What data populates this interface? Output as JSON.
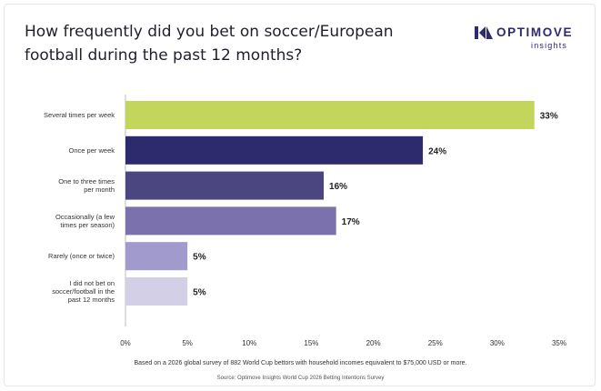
{
  "title_line1": "How frequently did you bet on soccer/European",
  "title_line2": "football during the past 12 months?",
  "logo": {
    "word": "OPTIMOVE",
    "sub": "insights"
  },
  "footnote": "Based on a 2026 global survey of 882 World Cup bettors with household incomes equivalent to $75,000 USD or more.",
  "source": "Source: Optimove Insights World Cup 2026 Betting Intentions Survey",
  "colors": {
    "brand": "#2d2a6e",
    "axis": "#bbbbbb",
    "label": "#333333"
  },
  "chart_data": {
    "type": "bar",
    "orientation": "horizontal",
    "categories": [
      [
        "Several times per week"
      ],
      [
        "Once per week"
      ],
      [
        "One to three times",
        "per month"
      ],
      [
        "Occasionally (a few",
        "times per season)"
      ],
      [
        "Rarely (once or twice)"
      ],
      [
        "I did not bet on",
        "soccer/football in the",
        "past 12 months"
      ]
    ],
    "values": [
      33,
      24,
      16,
      17,
      5,
      5
    ],
    "value_labels": [
      "33%",
      "24%",
      "16%",
      "17%",
      "5%",
      "5%"
    ],
    "bar_colors": [
      "#c3d55a",
      "#2d2a6e",
      "#4b4580",
      "#7b72ad",
      "#a19bcd",
      "#d2cfe6"
    ],
    "xlim": [
      0,
      35
    ],
    "xticks": [
      0,
      5,
      10,
      15,
      20,
      25,
      30,
      35
    ],
    "xtick_labels": [
      "0%",
      "5%",
      "10%",
      "15%",
      "20%",
      "25%",
      "30%",
      "35%"
    ],
    "grid": false
  }
}
